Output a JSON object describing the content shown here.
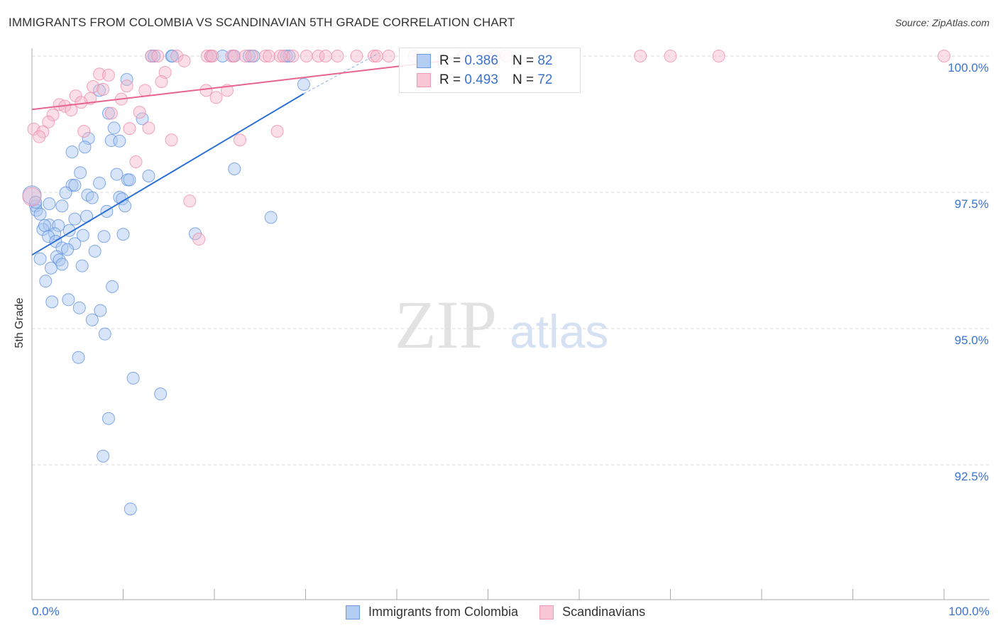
{
  "chart_data": {
    "type": "scatter",
    "title": "IMMIGRANTS FROM COLOMBIA VS SCANDINAVIAN 5TH GRADE CORRELATION CHART",
    "source": "Source: ZipAtlas.com",
    "xlabel": "",
    "ylabel": "5th Grade",
    "xlim": [
      0,
      105
    ],
    "ylim": [
      90.03,
      100.14
    ],
    "x_tick_labels": [
      "0.0%",
      "100.0%"
    ],
    "y_ticks": [
      {
        "value": 100.0,
        "label": "100.0%"
      },
      {
        "value": 97.5,
        "label": "97.5%"
      },
      {
        "value": 95.0,
        "label": "95.0%"
      },
      {
        "value": 92.5,
        "label": "92.5%"
      }
    ],
    "grid": true,
    "watermark": "ZIPatlas",
    "legend_position": "top-center",
    "series": [
      {
        "name": "Immigrants from Colombia",
        "color": "#5b8fe0",
        "fill": "#a9c6ef",
        "R": "0.386",
        "N": "82",
        "trend": {
          "x": [
            0,
            29.8
          ],
          "y": [
            96.35,
            99.31
          ],
          "dashed_to": [
            38.0,
            100.05
          ]
        },
        "points": [
          [
            13.1,
            100
          ],
          [
            13.4,
            100
          ],
          [
            15.3,
            100
          ],
          [
            15.4,
            100
          ],
          [
            19.6,
            100
          ],
          [
            20.9,
            100
          ],
          [
            22.1,
            100
          ],
          [
            23.8,
            100
          ],
          [
            24.3,
            100
          ],
          [
            27.9,
            100
          ],
          [
            28.2,
            100
          ],
          [
            29.8,
            99.48
          ],
          [
            10.4,
            99.57
          ],
          [
            7.4,
            99.37
          ],
          [
            8.4,
            98.95
          ],
          [
            12.1,
            98.85
          ],
          [
            9.0,
            98.68
          ],
          [
            6.2,
            98.49
          ],
          [
            8.7,
            98.45
          ],
          [
            9.6,
            98.44
          ],
          [
            5.8,
            98.33
          ],
          [
            4.4,
            98.24
          ],
          [
            5.3,
            97.86
          ],
          [
            9.3,
            97.83
          ],
          [
            12.8,
            97.8
          ],
          [
            22.2,
            97.93
          ],
          [
            7.4,
            97.67
          ],
          [
            4.4,
            97.63
          ],
          [
            4.7,
            97.63
          ],
          [
            10.5,
            97.73
          ],
          [
            10.7,
            97.73
          ],
          [
            3.7,
            97.49
          ],
          [
            6.1,
            97.45
          ],
          [
            6.6,
            97.4
          ],
          [
            9.6,
            97.41
          ],
          [
            9.9,
            97.38
          ],
          [
            1.9,
            97.29
          ],
          [
            3.3,
            97.25
          ],
          [
            10.2,
            97.25
          ],
          [
            0.4,
            97.25
          ],
          [
            0.5,
            97.17
          ],
          [
            0.9,
            97.1
          ],
          [
            8.2,
            97.15
          ],
          [
            6.0,
            97.06
          ],
          [
            26.2,
            97.04
          ],
          [
            4.7,
            97.01
          ],
          [
            1.9,
            96.9
          ],
          [
            2.9,
            96.89
          ],
          [
            1.2,
            96.82
          ],
          [
            1.4,
            96.89
          ],
          [
            4.1,
            96.8
          ],
          [
            2.5,
            96.74
          ],
          [
            1.8,
            96.69
          ],
          [
            5.6,
            96.71
          ],
          [
            7.9,
            96.69
          ],
          [
            10.0,
            96.73
          ],
          [
            17.9,
            96.74
          ],
          [
            4.7,
            96.56
          ],
          [
            2.6,
            96.6
          ],
          [
            3.3,
            96.48
          ],
          [
            3.9,
            96.45
          ],
          [
            6.9,
            96.42
          ],
          [
            0.9,
            96.28
          ],
          [
            2.7,
            96.32
          ],
          [
            3.0,
            96.26
          ],
          [
            3.3,
            96.18
          ],
          [
            5.5,
            96.15
          ],
          [
            2.1,
            96.11
          ],
          [
            1.5,
            95.87
          ],
          [
            8.8,
            95.77
          ],
          [
            2.2,
            95.49
          ],
          [
            4.0,
            95.53
          ],
          [
            5.2,
            95.38
          ],
          [
            7.5,
            95.33
          ],
          [
            6.6,
            95.16
          ],
          [
            8.0,
            94.9
          ],
          [
            5.1,
            94.47
          ],
          [
            11.1,
            94.09
          ],
          [
            14.1,
            93.8
          ],
          [
            8.4,
            93.35
          ],
          [
            7.8,
            92.66
          ],
          [
            10.8,
            91.69
          ],
          [
            0.0,
            97.45
          ],
          [
            0.4,
            97.32
          ]
        ]
      },
      {
        "name": "Scandinavians",
        "color": "#ee8aa8",
        "fill": "#f5b8cb",
        "R": "0.493",
        "N": "72",
        "trend": {
          "x": [
            0,
            44.7
          ],
          "y": [
            99.02,
            99.9
          ]
        },
        "points": [
          [
            13.1,
            100
          ],
          [
            13.8,
            100
          ],
          [
            15.9,
            100
          ],
          [
            19.2,
            100
          ],
          [
            19.6,
            100
          ],
          [
            19.8,
            100
          ],
          [
            21.9,
            100
          ],
          [
            22.2,
            100
          ],
          [
            23.4,
            100
          ],
          [
            24.1,
            100
          ],
          [
            25.6,
            100
          ],
          [
            26.0,
            100
          ],
          [
            27.2,
            100
          ],
          [
            27.6,
            100
          ],
          [
            28.6,
            100
          ],
          [
            30.1,
            100
          ],
          [
            31.4,
            100
          ],
          [
            32.2,
            100
          ],
          [
            33.5,
            100
          ],
          [
            35.6,
            100
          ],
          [
            37.5,
            100
          ],
          [
            37.8,
            100
          ],
          [
            39.1,
            100
          ],
          [
            41.9,
            100
          ],
          [
            47.3,
            100
          ],
          [
            50.7,
            100
          ],
          [
            52.0,
            100
          ],
          [
            66.7,
            100
          ],
          [
            70.0,
            100
          ],
          [
            75.3,
            100
          ],
          [
            100,
            100
          ],
          [
            16.7,
            99.91
          ],
          [
            7.4,
            99.67
          ],
          [
            8.4,
            99.65
          ],
          [
            14.6,
            99.7
          ],
          [
            10.4,
            99.45
          ],
          [
            6.7,
            99.44
          ],
          [
            7.8,
            99.39
          ],
          [
            14.2,
            99.53
          ],
          [
            12.4,
            99.37
          ],
          [
            19.1,
            99.37
          ],
          [
            21.4,
            99.37
          ],
          [
            4.8,
            99.27
          ],
          [
            6.4,
            99.22
          ],
          [
            9.8,
            99.21
          ],
          [
            20.2,
            99.24
          ],
          [
            3.0,
            99.11
          ],
          [
            3.6,
            99.08
          ],
          [
            4.3,
            99.01
          ],
          [
            5.4,
            99.15
          ],
          [
            2.3,
            98.92
          ],
          [
            8.7,
            98.95
          ],
          [
            11.8,
            98.97
          ],
          [
            1.8,
            98.79
          ],
          [
            0.2,
            98.66
          ],
          [
            1.2,
            98.61
          ],
          [
            5.7,
            98.62
          ],
          [
            10.7,
            98.67
          ],
          [
            12.8,
            98.68
          ],
          [
            26.9,
            98.62
          ],
          [
            0.8,
            98.52
          ],
          [
            15.3,
            98.46
          ],
          [
            22.8,
            98.46
          ],
          [
            11.4,
            98.06
          ],
          [
            17.3,
            97.34
          ],
          [
            18.3,
            96.64
          ],
          [
            0.0,
            97.42
          ]
        ]
      }
    ]
  }
}
